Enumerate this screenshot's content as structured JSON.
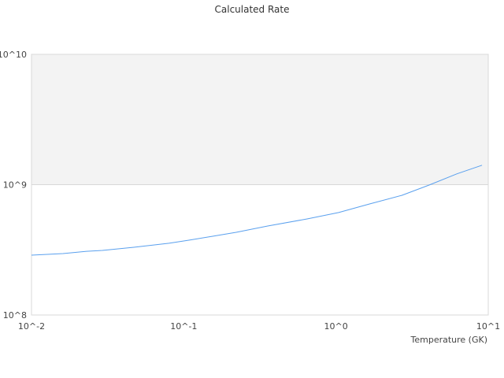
{
  "chart_data": {
    "type": "line",
    "title": "Calculated Rate",
    "xlabel": "Temperature (GK)",
    "ylabel": "",
    "xscale": "log",
    "yscale": "log",
    "xlim": [
      0.01,
      10
    ],
    "ylim": [
      100000000,
      10000000000
    ],
    "x_ticks": [
      {
        "value": 0.01,
        "label": "10^-2"
      },
      {
        "value": 0.1,
        "label": "10^-1"
      },
      {
        "value": 1,
        "label": "10^0"
      },
      {
        "value": 10,
        "label": "10^1"
      }
    ],
    "y_ticks": [
      {
        "value": 100000000,
        "label": "10^8"
      },
      {
        "value": 1000000000,
        "label": "10^9"
      },
      {
        "value": 10000000000,
        "label": "10^10"
      }
    ],
    "grid": "alternating bands per y decade",
    "legend": "none",
    "colors": {
      "line": "#5aa0ee",
      "band": "#f3f3f3",
      "axis": "#d8d8d8"
    },
    "series": [
      {
        "x": [
          0.01,
          0.0127,
          0.0161,
          0.023,
          0.0292,
          0.047,
          0.08,
          0.108,
          0.155,
          0.221,
          0.356,
          0.646,
          1.04,
          1.67,
          2.7,
          4.09,
          6.21,
          9.1
        ],
        "y": [
          288000000.0,
          292000000.0,
          296000000.0,
          308000000.0,
          313000000.0,
          331000000.0,
          355000000.0,
          375000000.0,
          402000000.0,
          431000000.0,
          482000000.0,
          546000000.0,
          611000000.0,
          712000000.0,
          828000000.0,
          993000000.0,
          1210000000.0,
          1410000000.0
        ]
      }
    ]
  }
}
